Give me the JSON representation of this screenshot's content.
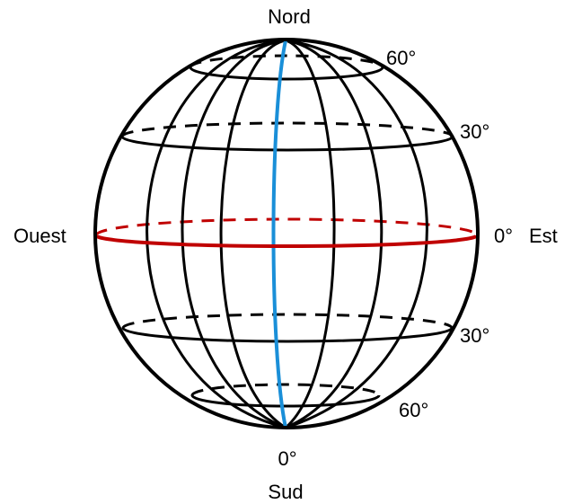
{
  "diagram": {
    "labels": {
      "north": "Nord",
      "south": "Sud",
      "west": "Ouest",
      "east": "Est",
      "lat_60_north": "60°",
      "lat_30_north": "30°",
      "lat_0": "0°",
      "lat_30_south": "30°",
      "lat_60_south": "60°",
      "meridian_0": "0°"
    },
    "colors": {
      "grid": "#000000",
      "equator": "#c00000",
      "prime_meridian": "#1a8fd8",
      "text": "#000000"
    }
  }
}
